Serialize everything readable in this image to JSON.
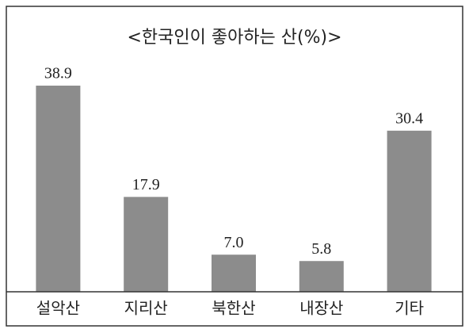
{
  "chart_data": {
    "type": "bar",
    "title": "<한국인이 좋아하는 산(%)>",
    "categories": [
      "설악산",
      "지리산",
      "북한산",
      "내장산",
      "기타"
    ],
    "values": [
      38.9,
      17.9,
      7.0,
      5.8,
      30.4
    ],
    "value_labels": [
      "38.9",
      "17.9",
      "7.0",
      "5.8",
      "30.4"
    ],
    "color": "#8c8c8c"
  }
}
